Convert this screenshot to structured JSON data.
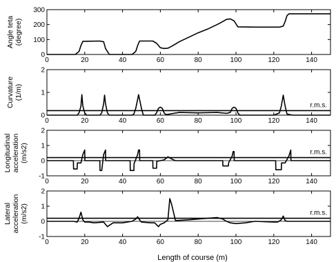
{
  "chart_data": [
    {
      "type": "line",
      "ylabel": [
        "Angle teta",
        "(degree)"
      ],
      "xlim": [
        0,
        150
      ],
      "ylim": [
        0,
        300
      ],
      "xticks": [
        0,
        20,
        40,
        60,
        80,
        100,
        120,
        140
      ],
      "yticks": [
        0,
        100,
        200,
        300
      ],
      "grid": false,
      "series": [
        {
          "x": [
            0,
            15,
            17,
            18,
            19,
            28,
            30,
            31,
            33,
            45,
            47,
            48,
            49,
            56,
            58,
            60,
            62,
            64,
            66,
            70,
            75,
            80,
            85,
            90,
            93,
            95,
            97,
            99,
            101,
            110,
            120,
            123,
            125,
            126,
            127,
            128,
            130,
            140,
            150
          ],
          "y": [
            0,
            0,
            20,
            60,
            88,
            90,
            85,
            40,
            0,
            0,
            20,
            60,
            90,
            90,
            75,
            45,
            40,
            42,
            55,
            85,
            115,
            145,
            170,
            200,
            220,
            235,
            238,
            225,
            185,
            183,
            183,
            183,
            190,
            220,
            260,
            272,
            272,
            272,
            272
          ]
        }
      ]
    },
    {
      "type": "line",
      "ylabel": [
        "Curvature",
        "(1/m)"
      ],
      "xlim": [
        0,
        150
      ],
      "ylim": [
        0,
        2
      ],
      "xticks": [
        0,
        20,
        40,
        60,
        80,
        100,
        120,
        140
      ],
      "yticks": [
        0,
        1,
        2
      ],
      "grid": false,
      "annotation": "r.m.s.",
      "rms": 0.2,
      "series": [
        {
          "x": [
            0,
            16,
            17,
            18,
            18.5,
            19,
            20,
            21,
            28,
            29,
            30,
            30.5,
            31,
            32,
            33,
            45,
            46,
            47,
            48,
            48.5,
            49,
            50,
            51,
            57,
            58,
            59,
            60,
            61,
            62,
            63,
            65,
            70,
            80,
            90,
            95,
            97,
            98,
            99,
            100,
            101,
            102,
            120,
            123,
            124,
            125,
            126,
            127,
            130,
            150
          ],
          "y": [
            0,
            0,
            0.1,
            0.4,
            0.9,
            0.4,
            0.1,
            0,
            0,
            0.1,
            0.5,
            0.88,
            0.5,
            0.1,
            0,
            0,
            0.05,
            0.3,
            0.7,
            0.9,
            0.7,
            0.3,
            0,
            0,
            0.1,
            0.3,
            0.35,
            0.3,
            0.1,
            0.02,
            0.05,
            0.12,
            0.1,
            0.12,
            0.08,
            0.12,
            0.3,
            0.35,
            0.3,
            0.1,
            0,
            0,
            0.1,
            0.4,
            0.88,
            0.4,
            0.05,
            0,
            0
          ]
        }
      ]
    },
    {
      "type": "line",
      "ylabel": [
        "Longitudinal",
        "acceleration",
        "(m/s2)"
      ],
      "xlim": [
        0,
        150
      ],
      "ylim": [
        -1,
        2
      ],
      "xticks": [
        0,
        20,
        40,
        60,
        80,
        100,
        120,
        140
      ],
      "yticks": [
        -1,
        0,
        1,
        2
      ],
      "grid": false,
      "annotation": "r.m.s.",
      "rms": 0.2,
      "series": [
        {
          "x": [
            0,
            14,
            14.1,
            16,
            16.1,
            18,
            19,
            20,
            20.1,
            28,
            28.1,
            29,
            30,
            31,
            31.1,
            44,
            44.1,
            46,
            46.1,
            48,
            48.5,
            49,
            49.1,
            56,
            56.1,
            58,
            58.1,
            62,
            64,
            67,
            68,
            93,
            93.1,
            96,
            96.1,
            98,
            98.5,
            99,
            99.1,
            121,
            121.1,
            124,
            124.1,
            126,
            128,
            129,
            129.1,
            150
          ],
          "y": [
            0,
            0,
            -0.55,
            -0.55,
            -0.15,
            -0.15,
            0.4,
            0.7,
            0,
            0,
            -0.65,
            -0.65,
            0.4,
            0.7,
            0,
            0,
            -0.65,
            -0.65,
            -0.2,
            0.4,
            0.7,
            0.7,
            0,
            0,
            -0.5,
            -0.5,
            -0.05,
            0.05,
            0.25,
            0.05,
            0,
            0,
            -0.35,
            -0.35,
            -0.15,
            0.3,
            0.6,
            0.6,
            0,
            0,
            -0.6,
            -0.6,
            -0.15,
            -0.15,
            0.3,
            0.7,
            0,
            0
          ]
        }
      ]
    },
    {
      "type": "line",
      "ylabel": [
        "Lateral",
        "acceleration",
        "(m/s2)"
      ],
      "xlim": [
        0,
        150
      ],
      "ylim": [
        -1,
        2
      ],
      "xticks": [
        0,
        20,
        40,
        60,
        80,
        100,
        120,
        140
      ],
      "yticks": [
        -1,
        0,
        1,
        2
      ],
      "grid": false,
      "annotation": "r.m.s.",
      "rms": 0.2,
      "series": [
        {
          "x": [
            0,
            14,
            16,
            17,
            18,
            19,
            20,
            22,
            25,
            30,
            32,
            35,
            40,
            45,
            47,
            48,
            49,
            50,
            55,
            57,
            59,
            60,
            62,
            64,
            65,
            66,
            68,
            75,
            85,
            90,
            93,
            95,
            97,
            100,
            105,
            110,
            120,
            122,
            124,
            125,
            126,
            127,
            130,
            140,
            150
          ],
          "y": [
            0,
            0,
            -0.05,
            0.2,
            0.6,
            0.1,
            -0.05,
            -0.05,
            -0.1,
            -0.05,
            -0.35,
            -0.1,
            -0.1,
            0,
            0.15,
            0.3,
            0.1,
            -0.05,
            -0.1,
            -0.1,
            -0.35,
            -0.2,
            -0.1,
            0.1,
            1.5,
            1.1,
            0.05,
            0.1,
            0.2,
            0.25,
            0.15,
            0,
            -0.1,
            -0.15,
            -0.1,
            0,
            -0.05,
            -0.05,
            0.1,
            0.35,
            0.05,
            0,
            0,
            0,
            0
          ]
        }
      ]
    }
  ],
  "xlabel": "Length of course (m)"
}
